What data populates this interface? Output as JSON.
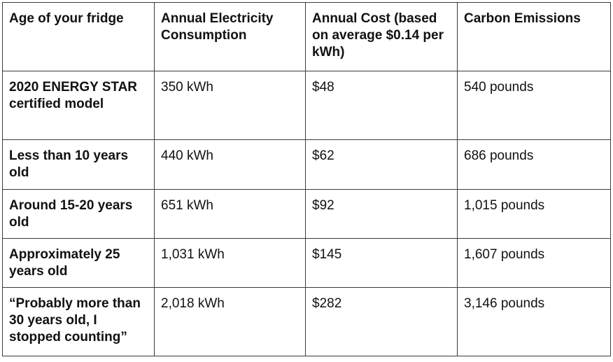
{
  "table": {
    "headers": [
      "Age of your fridge",
      "Annual Electricity Consumption",
      "Annual Cost (based on average $0.14 per kWh)",
      "Carbon Emissions"
    ],
    "rows": [
      [
        "2020 ENERGY STAR certified model",
        "350 kWh",
        "$48",
        "540 pounds"
      ],
      [
        "Less than 10 years old",
        "440 kWh",
        "$62",
        "686 pounds"
      ],
      [
        "Around 15-20 years old",
        "651 kWh",
        "$92",
        "1,015 pounds"
      ],
      [
        "Approximately 25 years old",
        "1,031 kWh",
        "$145",
        "1,607 pounds"
      ],
      [
        "“Probably more than 30 years old, I stopped counting”",
        "2,018 kWh",
        "$282",
        "3,146 pounds"
      ]
    ]
  }
}
